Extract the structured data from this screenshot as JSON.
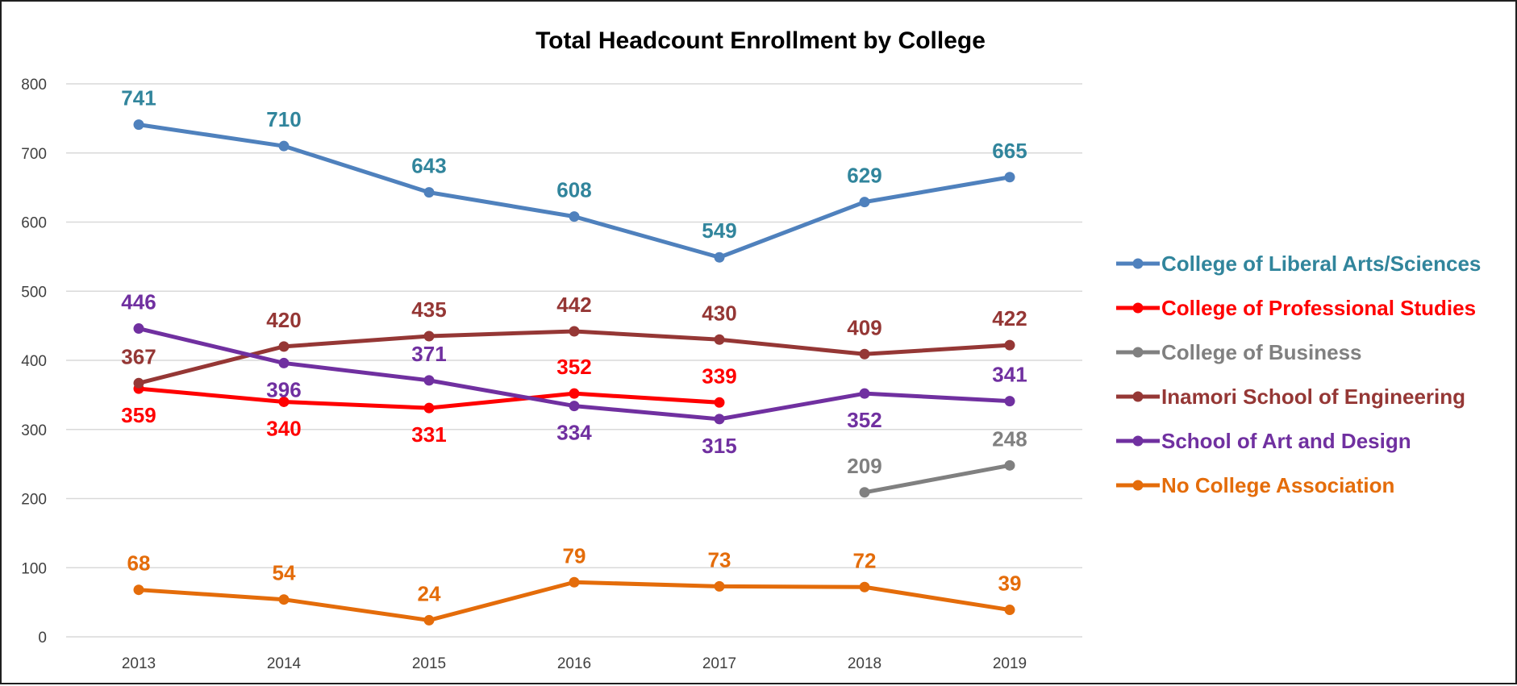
{
  "chart_data": {
    "type": "line",
    "title": "Total Headcount Enrollment by College",
    "xlabel": "",
    "ylabel": "",
    "categories": [
      "2013",
      "2014",
      "2015",
      "2016",
      "2017",
      "2018",
      "2019"
    ],
    "ylim": [
      0,
      800
    ],
    "yticks": [
      0,
      100,
      200,
      300,
      400,
      500,
      600,
      700,
      800
    ],
    "grid": "horizontal",
    "legend": "right",
    "series": [
      {
        "name": "College of Liberal Arts/Sciences",
        "color": "#4f81bd",
        "label_color": "#31859c",
        "values": [
          741,
          710,
          643,
          608,
          549,
          629,
          665
        ]
      },
      {
        "name": "College of Professional Studies",
        "color": "#ff0000",
        "label_color": "#ff0000",
        "values": [
          359,
          340,
          331,
          352,
          339,
          null,
          null
        ]
      },
      {
        "name": "College of Business",
        "color": "#808080",
        "label_color": "#808080",
        "values": [
          null,
          null,
          null,
          null,
          null,
          209,
          248
        ]
      },
      {
        "name": "Inamori School of Engineering",
        "color": "#953735",
        "label_color": "#953735",
        "values": [
          367,
          420,
          435,
          442,
          430,
          409,
          422
        ]
      },
      {
        "name": "School of Art and Design",
        "color": "#7030a0",
        "label_color": "#7030a0",
        "values": [
          446,
          396,
          371,
          334,
          315,
          352,
          341
        ]
      },
      {
        "name": "No College Association",
        "color": "#e46c0a",
        "label_color": "#e46c0a",
        "values": [
          68,
          54,
          24,
          79,
          73,
          72,
          39
        ]
      }
    ]
  }
}
